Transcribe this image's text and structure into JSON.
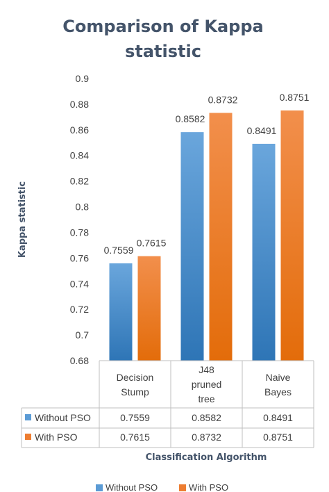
{
  "chart_data": {
    "type": "bar",
    "title": "Comparison of Kappa statistic",
    "title_lines": [
      "Comparison of Kappa",
      "statistic"
    ],
    "xlabel": "Classification Algorithm",
    "ylabel": "Kappa statistic",
    "ylim": [
      0.68,
      0.9
    ],
    "yticks": [
      "0.68",
      "0.7",
      "0.72",
      "0.74",
      "0.76",
      "0.78",
      "0.8",
      "0.82",
      "0.84",
      "0.86",
      "0.88",
      "0.9"
    ],
    "categories": [
      "Decision Stump",
      "J48 pruned tree",
      "Naive Bayes"
    ],
    "category_lines": [
      [
        "Decision",
        "Stump"
      ],
      [
        "J48",
        "pruned",
        "tree"
      ],
      [
        "Naive",
        "Bayes"
      ]
    ],
    "series": [
      {
        "name": "Without PSO",
        "values": [
          0.7559,
          0.8582,
          0.8491
        ],
        "labels": [
          "0.7559",
          "0.8582",
          "0.8491"
        ],
        "color": "#5b9bd5"
      },
      {
        "name": "With PSO",
        "values": [
          0.7615,
          0.8732,
          0.8751
        ],
        "labels": [
          "0.7615",
          "0.8732",
          "0.8751"
        ],
        "color": "#ed7d31"
      }
    ],
    "grid": false,
    "data_table": true,
    "legend": "bottom"
  }
}
